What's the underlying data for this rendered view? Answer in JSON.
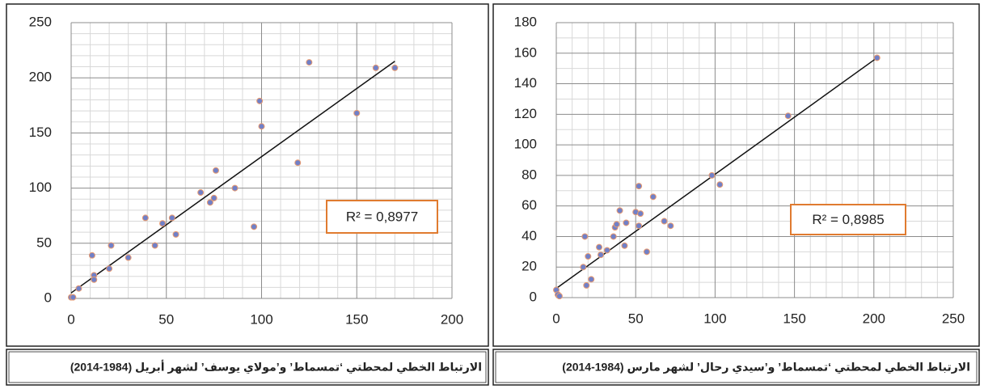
{
  "chart_data": [
    {
      "type": "scatter",
      "color": "#7080c8",
      "edge_color": "#e89a70",
      "xlim": [
        0,
        200
      ],
      "ylim": [
        0,
        250
      ],
      "xticks": [
        0,
        50,
        100,
        150,
        200
      ],
      "yticks": [
        0,
        50,
        100,
        150,
        200,
        250
      ],
      "grid": true,
      "minor_xstep": 10,
      "minor_ystep": 10,
      "x": [
        0,
        1,
        4,
        11,
        12,
        12,
        20,
        21,
        30,
        39,
        44,
        48,
        53,
        55,
        68,
        73,
        75,
        76,
        86,
        96,
        99,
        100,
        119,
        125,
        150,
        160,
        170
      ],
      "y": [
        1,
        1,
        9,
        39,
        21,
        17,
        27,
        48,
        37,
        73,
        48,
        68,
        73,
        58,
        96,
        87,
        91,
        116,
        100,
        65,
        179,
        156,
        123,
        214,
        168,
        209,
        209
      ],
      "trendline": {
        "x": [
          0,
          170
        ],
        "y": [
          5,
          215
        ]
      },
      "annotation": "R² = 0,8977",
      "caption": "الارتباط الخطي لمحطتي ‘تمسماط’ و’مولاي يوسف’ لشهر أبريل (1984-2014)"
    },
    {
      "type": "scatter",
      "color": "#7080c8",
      "edge_color": "#e89a70",
      "xlim": [
        0,
        250
      ],
      "ylim": [
        0,
        180
      ],
      "xticks": [
        0,
        50,
        100,
        150,
        200,
        250
      ],
      "yticks": [
        0,
        20,
        40,
        60,
        80,
        100,
        120,
        140,
        160,
        180
      ],
      "grid": true,
      "minor_xstep": 10,
      "minor_ystep": 10,
      "x": [
        0,
        1,
        2,
        17,
        18,
        19,
        20,
        22,
        27,
        28,
        32,
        36,
        37,
        38,
        40,
        43,
        44,
        50,
        52,
        53,
        52,
        57,
        61,
        68,
        72,
        98,
        103,
        146,
        202
      ],
      "y": [
        5,
        2,
        1,
        20,
        40,
        8,
        27,
        12,
        33,
        28,
        31,
        40,
        46,
        48,
        57,
        34,
        49,
        56,
        73,
        55,
        47,
        30,
        66,
        50,
        47,
        80,
        74,
        119,
        157
      ],
      "trendline": {
        "x": [
          0,
          202
        ],
        "y": [
          6,
          157
        ]
      },
      "annotation": "R² = 0,8985",
      "caption": "الارتباط الخطي لمحطتي ‘تمسماط’ و’سيدي رحال’ لشهر مارس (1984-2014)"
    }
  ]
}
